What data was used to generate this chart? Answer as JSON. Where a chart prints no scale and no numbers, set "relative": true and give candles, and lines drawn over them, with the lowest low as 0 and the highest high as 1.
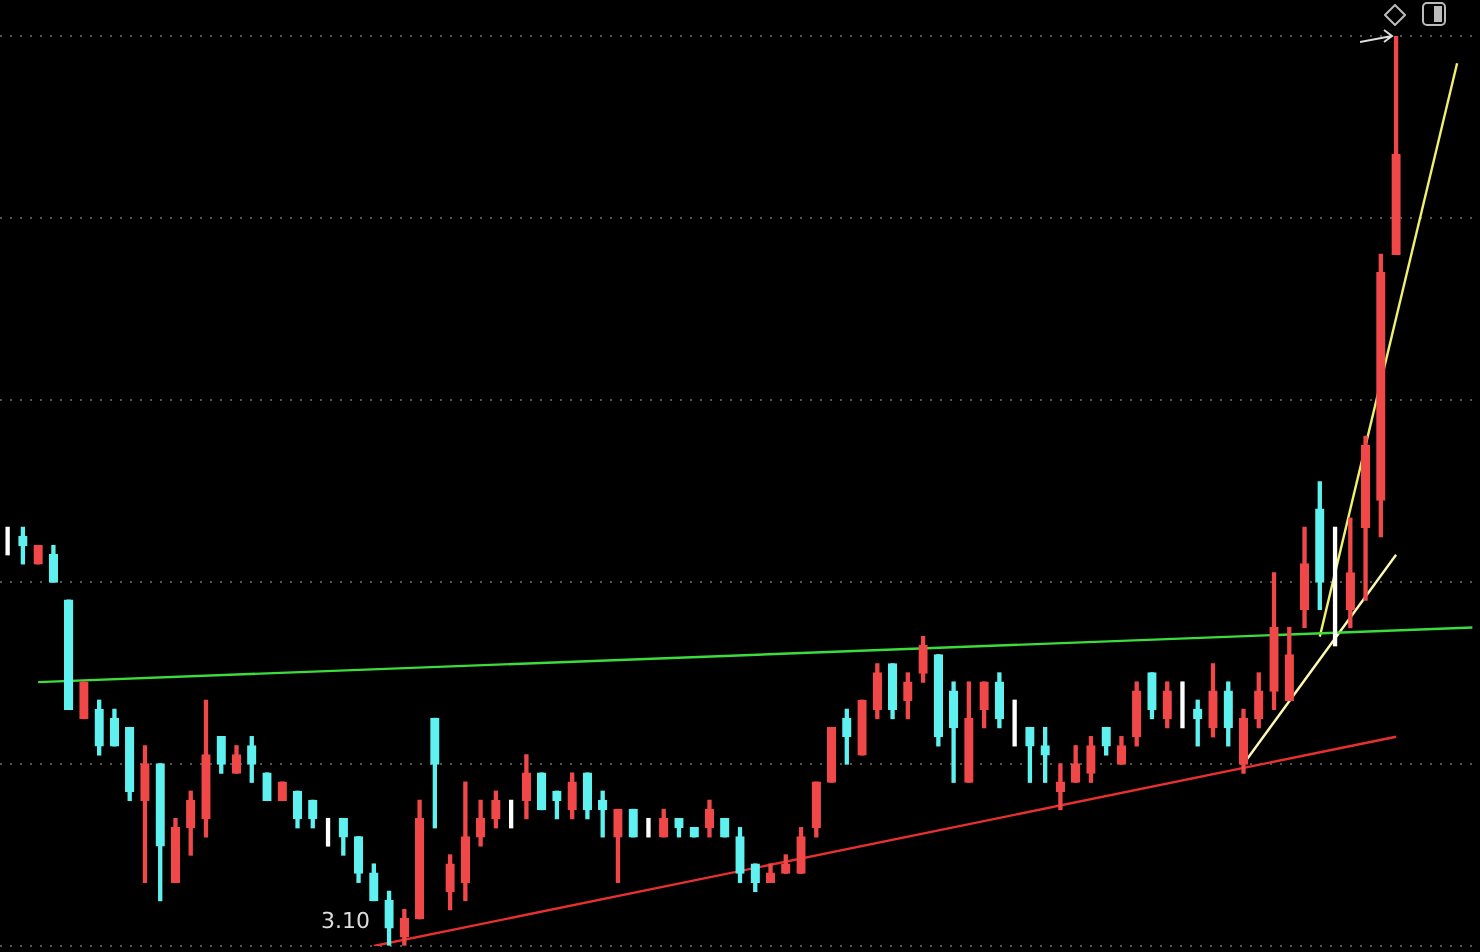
{
  "chart_data": {
    "type": "candlestick",
    "relative": true,
    "grid": "y",
    "categories": [
      null,
      null,
      null,
      null,
      null,
      null,
      null,
      null,
      null,
      null,
      null,
      null,
      null,
      null,
      null,
      null,
      null,
      null,
      null,
      null,
      null,
      null,
      null,
      null,
      null,
      null,
      null,
      null,
      null,
      null,
      null,
      null,
      null,
      null,
      null,
      null,
      null,
      null,
      null,
      null,
      null,
      null,
      null,
      null,
      null,
      null,
      null,
      null,
      null,
      null,
      null,
      null,
      null,
      null,
      null,
      null,
      null,
      null,
      null,
      null,
      null,
      null,
      null,
      null,
      null,
      null,
      null,
      null,
      null,
      null,
      null,
      null,
      null,
      null,
      null,
      null,
      null,
      null,
      null,
      null,
      null,
      null,
      null,
      null,
      null,
      null,
      null,
      null,
      null,
      null,
      null,
      null,
      null,
      null,
      null,
      null,
      null
    ],
    "ohlc": [
      [
        0.45,
        0.46,
        0.43,
        0.45
      ],
      [
        0.45,
        0.46,
        0.42,
        0.44
      ],
      [
        0.42,
        0.44,
        0.42,
        0.44
      ],
      [
        0.43,
        0.44,
        0.4,
        0.4
      ],
      [
        0.38,
        0.38,
        0.26,
        0.26
      ],
      [
        0.25,
        0.29,
        0.25,
        0.29
      ],
      [
        0.26,
        0.27,
        0.21,
        0.22
      ],
      [
        0.25,
        0.26,
        0.22,
        0.22
      ],
      [
        0.24,
        0.24,
        0.16,
        0.17
      ],
      [
        0.16,
        0.22,
        0.07,
        0.2
      ],
      [
        0.2,
        0.2,
        0.05,
        0.11
      ],
      [
        0.07,
        0.14,
        0.07,
        0.13
      ],
      [
        0.13,
        0.17,
        0.1,
        0.16
      ],
      [
        0.14,
        0.27,
        0.12,
        0.21
      ],
      [
        0.23,
        0.23,
        0.19,
        0.2
      ],
      [
        0.19,
        0.22,
        0.19,
        0.21
      ],
      [
        0.22,
        0.23,
        0.18,
        0.2
      ],
      [
        0.19,
        0.19,
        0.16,
        0.16
      ],
      [
        0.16,
        0.18,
        0.16,
        0.18
      ],
      [
        0.17,
        0.17,
        0.13,
        0.14
      ],
      [
        0.16,
        0.16,
        0.13,
        0.14
      ],
      [
        0.12,
        0.14,
        0.11,
        0.12
      ],
      [
        0.14,
        0.14,
        0.1,
        0.12
      ],
      [
        0.12,
        0.12,
        0.07,
        0.08
      ],
      [
        0.08,
        0.09,
        0.05,
        0.05
      ],
      [
        0.05,
        0.06,
        0,
        0.02
      ],
      [
        0.01,
        0.04,
        0.0,
        0.03
      ],
      [
        0.03,
        0.16,
        0.03,
        0.14
      ],
      [
        0.25,
        0.25,
        0.13,
        0.2
      ],
      [
        0.06,
        0.1,
        0.04,
        0.09
      ],
      [
        0.07,
        0.18,
        0.05,
        0.12
      ],
      [
        0.12,
        0.16,
        0.11,
        0.14
      ],
      [
        0.14,
        0.17,
        0.13,
        0.16
      ],
      [
        0.14,
        0.16,
        0.13,
        0.14
      ],
      [
        0.16,
        0.21,
        0.14,
        0.19
      ],
      [
        0.19,
        0.19,
        0.15,
        0.15
      ],
      [
        0.17,
        0.17,
        0.14,
        0.16
      ],
      [
        0.15,
        0.19,
        0.14,
        0.18
      ],
      [
        0.19,
        0.19,
        0.14,
        0.15
      ],
      [
        0.16,
        0.17,
        0.12,
        0.15
      ],
      [
        0.12,
        0.15,
        0.07,
        0.15
      ],
      [
        0.15,
        0.15,
        0.12,
        0.12
      ],
      [
        0.14,
        0.14,
        0.12,
        0.14
      ],
      [
        0.12,
        0.15,
        0.12,
        0.14
      ],
      [
        0.14,
        0.14,
        0.12,
        0.13
      ],
      [
        0.13,
        0.13,
        0.12,
        0.12
      ],
      [
        0.13,
        0.16,
        0.12,
        0.15
      ],
      [
        0.14,
        0.14,
        0.12,
        0.12
      ],
      [
        0.12,
        0.13,
        0.07,
        0.08
      ],
      [
        0.09,
        0.09,
        0.06,
        0.07
      ],
      [
        0.07,
        0.09,
        0.07,
        0.08
      ],
      [
        0.08,
        0.1,
        0.08,
        0.09
      ],
      [
        0.08,
        0.13,
        0.08,
        0.12
      ],
      [
        0.13,
        0.18,
        0.12,
        0.18
      ],
      [
        0.18,
        0.24,
        0.18,
        0.24
      ],
      [
        0.25,
        0.26,
        0.2,
        0.23
      ],
      [
        0.21,
        0.27,
        0.21,
        0.27
      ],
      [
        0.26,
        0.31,
        0.25,
        0.3
      ],
      [
        0.31,
        0.31,
        0.25,
        0.26
      ],
      [
        0.27,
        0.3,
        0.25,
        0.29
      ],
      [
        0.3,
        0.34,
        0.29,
        0.33
      ],
      [
        0.32,
        0.32,
        0.22,
        0.23
      ],
      [
        0.28,
        0.29,
        0.18,
        0.24
      ],
      [
        0.18,
        0.29,
        0.18,
        0.25
      ],
      [
        0.26,
        0.29,
        0.24,
        0.29
      ],
      [
        0.29,
        0.3,
        0.24,
        0.25
      ],
      [
        0.24,
        0.27,
        0.22,
        0.24
      ],
      [
        0.24,
        0.24,
        0.18,
        0.22
      ],
      [
        0.22,
        0.24,
        0.18,
        0.21
      ],
      [
        0.17,
        0.2,
        0.15,
        0.18
      ],
      [
        0.18,
        0.22,
        0.18,
        0.2
      ],
      [
        0.19,
        0.23,
        0.18,
        0.22
      ],
      [
        0.24,
        0.24,
        0.21,
        0.22
      ],
      [
        0.2,
        0.23,
        0.2,
        0.22
      ],
      [
        0.23,
        0.29,
        0.22,
        0.28
      ],
      [
        0.3,
        0.3,
        0.25,
        0.26
      ],
      [
        0.25,
        0.29,
        0.24,
        0.28
      ],
      [
        0.28,
        0.29,
        0.24,
        0.28
      ],
      [
        0.26,
        0.27,
        0.22,
        0.25
      ],
      [
        0.24,
        0.31,
        0.23,
        0.28
      ],
      [
        0.28,
        0.29,
        0.22,
        0.24
      ],
      [
        0.2,
        0.26,
        0.19,
        0.25
      ],
      [
        0.25,
        0.3,
        0.24,
        0.28
      ],
      [
        0.28,
        0.41,
        0.26,
        0.35
      ],
      [
        0.27,
        0.35,
        0.27,
        0.32
      ],
      [
        0.37,
        0.46,
        0.35,
        0.42
      ],
      [
        0.48,
        0.51,
        0.37,
        0.4
      ],
      [
        0.36,
        0.46,
        0.33,
        0.36
      ],
      [
        0.37,
        0.47,
        0.35,
        0.41
      ],
      [
        0.46,
        0.56,
        0.38,
        0.55
      ],
      [
        0.49,
        0.76,
        0.45,
        0.74
      ],
      [
        0.76,
        1,
        0.76,
        0.87
      ],
      null,
      null,
      null,
      null,
      null
    ],
    "colors": [
      "#ffffff",
      "#5ff0f0",
      "#f04848",
      "#5ff0f0",
      "#5ff0f0",
      "#f04848",
      "#5ff0f0",
      "#5ff0f0",
      "#5ff0f0",
      "#f04848",
      "#5ff0f0",
      "#f04848",
      "#f04848",
      "#f04848",
      "#5ff0f0",
      "#f04848",
      "#5ff0f0",
      "#5ff0f0",
      "#f04848",
      "#5ff0f0",
      "#5ff0f0",
      "#ffffff",
      "#5ff0f0",
      "#5ff0f0",
      "#5ff0f0",
      "#5ff0f0",
      "#f04848",
      "#f04848",
      "#5ff0f0",
      "#f04848",
      "#f04848",
      "#f04848",
      "#f04848",
      "#ffffff",
      "#f04848",
      "#5ff0f0",
      "#5ff0f0",
      "#f04848",
      "#5ff0f0",
      "#5ff0f0",
      "#f04848",
      "#5ff0f0",
      "#ffffff",
      "#f04848",
      "#5ff0f0",
      "#5ff0f0",
      "#f04848",
      "#5ff0f0",
      "#5ff0f0",
      "#5ff0f0",
      "#f04848",
      "#f04848",
      "#f04848",
      "#f04848",
      "#f04848",
      "#5ff0f0",
      "#f04848",
      "#f04848",
      "#5ff0f0",
      "#f04848",
      "#f04848",
      "#5ff0f0",
      "#5ff0f0",
      "#f04848",
      "#f04848",
      "#5ff0f0",
      "#ffffff",
      "#5ff0f0",
      "#5ff0f0",
      "#f04848",
      "#f04848",
      "#f04848",
      "#5ff0f0",
      "#f04848",
      "#f04848",
      "#5ff0f0",
      "#f04848",
      "#ffffff",
      "#5ff0f0",
      "#f04848",
      "#5ff0f0",
      "#f04848",
      "#f04848",
      "#f04848",
      "#f04848",
      "#f04848",
      "#5ff0f0",
      "#ffffff",
      "#f04848",
      "#f04848",
      "#f04848",
      "#f04848",
      null,
      null,
      null,
      null,
      null
    ],
    "series": [
      {
        "type": "line",
        "color": "#3cdc3c",
        "values": [
          null,
          null,
          0.29,
          null,
          null,
          null,
          null,
          null,
          null,
          null,
          null,
          null,
          null,
          null,
          null,
          null,
          null,
          null,
          null,
          null,
          null,
          null,
          null,
          null,
          null,
          null,
          null,
          null,
          null,
          null,
          null,
          null,
          null,
          null,
          null,
          null,
          null,
          null,
          null,
          null,
          null,
          null,
          null,
          null,
          null,
          null,
          null,
          null,
          null,
          null,
          null,
          null,
          null,
          null,
          null,
          null,
          null,
          null,
          null,
          null,
          null,
          null,
          null,
          null,
          null,
          null,
          null,
          null,
          null,
          null,
          null,
          null,
          null,
          null,
          null,
          null,
          null,
          null,
          null,
          null,
          null,
          null,
          null,
          null,
          null,
          null,
          null,
          null,
          null,
          null,
          null,
          null,
          null,
          null,
          null,
          null,
          0.35
        ]
      },
      {
        "type": "line",
        "color": "#e83030",
        "values": [
          null,
          null,
          null,
          null,
          null,
          null,
          null,
          null,
          null,
          null,
          null,
          null,
          null,
          null,
          null,
          null,
          null,
          null,
          null,
          null,
          null,
          null,
          null,
          null,
          0,
          null,
          null,
          null,
          null,
          null,
          null,
          null,
          null,
          null,
          null,
          null,
          null,
          null,
          null,
          null,
          null,
          null,
          null,
          null,
          null,
          null,
          null,
          null,
          null,
          null,
          null,
          null,
          null,
          null,
          null,
          null,
          null,
          null,
          null,
          null,
          null,
          null,
          null,
          null,
          null,
          null,
          null,
          null,
          null,
          null,
          null,
          null,
          null,
          null,
          null,
          null,
          null,
          null,
          null,
          null,
          null,
          null,
          null,
          null,
          null,
          null,
          null,
          null,
          null,
          null,
          null,
          0.23,
          null,
          null,
          null,
          null,
          null
        ]
      },
      {
        "type": "line",
        "color": "#fff8b0",
        "values": [
          null,
          null,
          null,
          null,
          null,
          null,
          null,
          null,
          null,
          null,
          null,
          null,
          null,
          null,
          null,
          null,
          null,
          null,
          null,
          null,
          null,
          null,
          null,
          null,
          null,
          null,
          null,
          null,
          null,
          null,
          null,
          null,
          null,
          null,
          null,
          null,
          null,
          null,
          null,
          null,
          null,
          null,
          null,
          null,
          null,
          null,
          null,
          null,
          null,
          null,
          null,
          null,
          null,
          null,
          null,
          null,
          null,
          null,
          null,
          null,
          null,
          null,
          null,
          null,
          null,
          null,
          null,
          null,
          null,
          null,
          null,
          null,
          null,
          null,
          null,
          null,
          null,
          null,
          null,
          null,
          null,
          0.2,
          null,
          null,
          null,
          null,
          null,
          null,
          null,
          null,
          null,
          0.43,
          null,
          null,
          null,
          null,
          null
        ]
      },
      {
        "type": "line",
        "color": "#f0f070",
        "values": [
          null,
          null,
          null,
          null,
          null,
          null,
          null,
          null,
          null,
          null,
          null,
          null,
          null,
          null,
          null,
          null,
          null,
          null,
          null,
          null,
          null,
          null,
          null,
          null,
          null,
          null,
          null,
          null,
          null,
          null,
          null,
          null,
          null,
          null,
          null,
          null,
          null,
          null,
          null,
          null,
          null,
          null,
          null,
          null,
          null,
          null,
          null,
          null,
          null,
          null,
          null,
          null,
          null,
          null,
          null,
          null,
          null,
          null,
          null,
          null,
          null,
          null,
          null,
          null,
          null,
          null,
          null,
          null,
          null,
          null,
          null,
          null,
          null,
          null,
          null,
          null,
          null,
          null,
          null,
          null,
          null,
          null,
          null,
          null,
          null,
          null,
          0.34,
          null,
          null,
          null,
          null,
          null,
          null,
          null,
          null,
          0.97,
          null
        ]
      }
    ],
    "annotations": [
      "3.10"
    ]
  }
}
